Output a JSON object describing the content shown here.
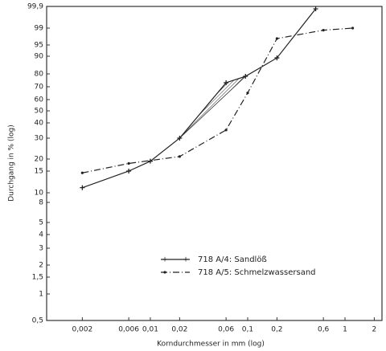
{
  "chart_data": {
    "type": "line",
    "xlabel": "Korndurchmesser in mm (log)",
    "ylabel": "Durchgang in % (log)",
    "xscale": "log",
    "xlim": [
      0.00086,
      2.4
    ],
    "xticks": [
      {
        "value": 0.002,
        "label": "0,002"
      },
      {
        "value": 0.006,
        "label": "0,006"
      },
      {
        "value": 0.01,
        "label": "0,01"
      },
      {
        "value": 0.02,
        "label": "0,02"
      },
      {
        "value": 0.06,
        "label": "0,06"
      },
      {
        "value": 0.1,
        "label": "0,1"
      },
      {
        "value": 0.2,
        "label": "0,2"
      },
      {
        "value": 0.6,
        "label": "0,6"
      },
      1,
      2
    ],
    "ylim": [
      0.5,
      99.9
    ],
    "yticks": [
      {
        "value": 0.5,
        "label": "0,5"
      },
      1,
      {
        "value": 1.5,
        "label": "1,5"
      },
      2,
      3,
      4,
      5,
      8,
      10,
      15,
      20,
      30,
      40,
      50,
      60,
      70,
      80,
      90,
      95,
      99,
      {
        "value": 99.9,
        "label": "99,9"
      }
    ],
    "legend": "lower right",
    "series": [
      {
        "name": "718 A/4: Sandlöß",
        "color": "#222222",
        "line_style": "solid",
        "marker": "plus",
        "x": [
          0.002,
          0.006,
          0.01,
          0.02,
          0.06,
          0.095,
          0.2,
          0.5
        ],
        "values": [
          11,
          15,
          19,
          30,
          73,
          78,
          89,
          99.8
        ]
      },
      {
        "name": "718 A/5: Schmelzwassersand",
        "color": "#222222",
        "line_style": "dashdot",
        "marker": "dot",
        "x": [
          0.002,
          0.006,
          0.02,
          0.06,
          0.1,
          0.2,
          0.6,
          1.2
        ],
        "values": [
          14.5,
          18,
          21,
          35,
          65,
          96.5,
          98.5,
          99
        ]
      }
    ]
  }
}
